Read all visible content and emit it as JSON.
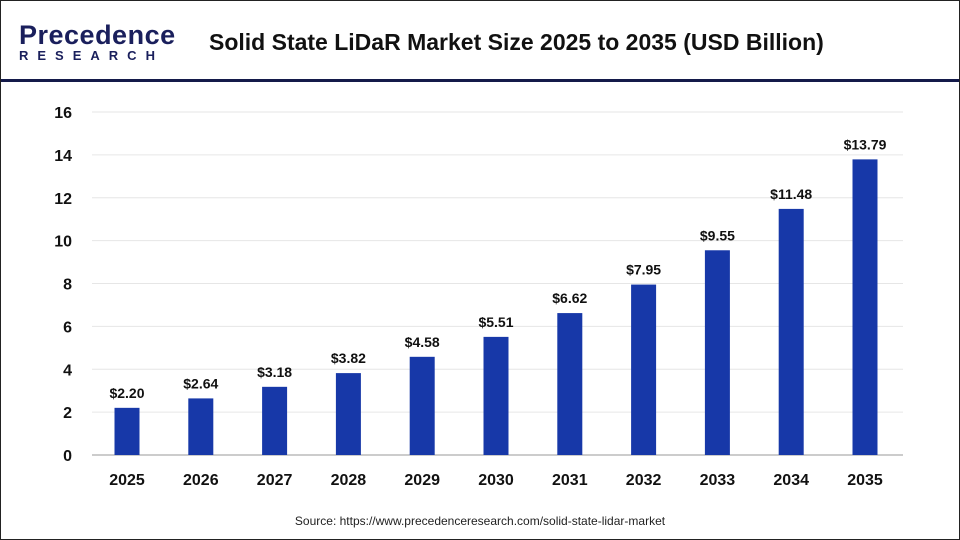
{
  "logo": {
    "line1": "Precedence",
    "line2": "RESEARCH"
  },
  "header": {
    "title": "Solid State LiDaR Market Size 2025 to 2035 (USD Billion)"
  },
  "source": "Source: https://www.precedenceresearch.com/solid-state-lidar-market",
  "chart_data": {
    "type": "bar",
    "title": "Solid State LiDaR Market Size 2025 to 2035 (USD Billion)",
    "categories": [
      "2025",
      "2026",
      "2027",
      "2028",
      "2029",
      "2030",
      "2031",
      "2032",
      "2033",
      "2034",
      "2035"
    ],
    "values": [
      2.2,
      2.64,
      3.18,
      3.82,
      4.58,
      5.51,
      6.62,
      7.95,
      9.55,
      11.48,
      13.79
    ],
    "labels": [
      "$2.20",
      "$2.64",
      "$3.18",
      "$3.82",
      "$4.58",
      "$5.51",
      "$6.62",
      "$7.95",
      "$9.55",
      "$11.48",
      "$13.79"
    ],
    "ylim": [
      0,
      16
    ],
    "yticks": [
      "0",
      "2",
      "4",
      "6",
      "8",
      "10",
      "12",
      "14",
      "16"
    ],
    "grid": true,
    "bar_color": "#1738a8"
  }
}
